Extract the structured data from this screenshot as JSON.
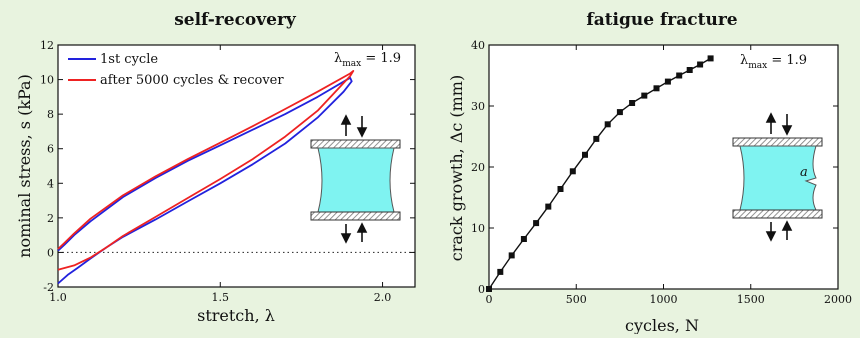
{
  "chart_data": [
    {
      "type": "line",
      "title": "self-recovery",
      "xlabel": "stretch, λ",
      "ylabel": "nominal stress, s (kPa)",
      "xlim": [
        1.0,
        2.1
      ],
      "ylim": [
        -2,
        12
      ],
      "xticks": [
        "1.0",
        "1.5",
        "2.0"
      ],
      "yticks": [
        "-2",
        "0",
        "2",
        "4",
        "6",
        "8",
        "10",
        "12"
      ],
      "zero_line": "dotted",
      "legend_position": "top-left",
      "annotation": {
        "symbol": "λ",
        "sub": "max",
        "rest": " = 1.9"
      },
      "series": [
        {
          "name": "1st cycle",
          "color": "#2222dd",
          "points": [
            [
              1.0,
              -1.8
            ],
            [
              1.03,
              -1.3
            ],
            [
              1.06,
              -0.9
            ],
            [
              1.1,
              -0.35
            ],
            [
              1.15,
              0.3
            ],
            [
              1.2,
              0.9
            ],
            [
              1.3,
              1.9
            ],
            [
              1.4,
              2.95
            ],
            [
              1.5,
              4.0
            ],
            [
              1.6,
              5.1
            ],
            [
              1.7,
              6.3
            ],
            [
              1.8,
              7.8
            ],
            [
              1.88,
              9.3
            ],
            [
              1.905,
              9.9
            ],
            [
              1.9,
              10.1
            ],
            [
              1.8,
              9.0
            ],
            [
              1.7,
              8.0
            ],
            [
              1.6,
              7.1
            ],
            [
              1.5,
              6.2
            ],
            [
              1.4,
              5.3
            ],
            [
              1.3,
              4.3
            ],
            [
              1.2,
              3.2
            ],
            [
              1.1,
              1.8
            ],
            [
              1.05,
              1.0
            ],
            [
              1.02,
              0.45
            ],
            [
              1.0,
              0.1
            ]
          ]
        },
        {
          "name": "after 5000 cycles & recover",
          "color": "#ee2222",
          "points": [
            [
              1.0,
              -1.0
            ],
            [
              1.05,
              -0.75
            ],
            [
              1.1,
              -0.3
            ],
            [
              1.15,
              0.3
            ],
            [
              1.2,
              0.95
            ],
            [
              1.3,
              2.05
            ],
            [
              1.4,
              3.15
            ],
            [
              1.5,
              4.25
            ],
            [
              1.6,
              5.4
            ],
            [
              1.7,
              6.7
            ],
            [
              1.8,
              8.2
            ],
            [
              1.88,
              9.8
            ],
            [
              1.9,
              10.2
            ],
            [
              1.91,
              10.5
            ],
            [
              1.9,
              10.35
            ],
            [
              1.8,
              9.3
            ],
            [
              1.7,
              8.3
            ],
            [
              1.6,
              7.3
            ],
            [
              1.5,
              6.35
            ],
            [
              1.4,
              5.4
            ],
            [
              1.3,
              4.4
            ],
            [
              1.2,
              3.3
            ],
            [
              1.1,
              1.95
            ],
            [
              1.05,
              1.1
            ],
            [
              1.02,
              0.55
            ],
            [
              1.0,
              0.2
            ]
          ]
        }
      ]
    },
    {
      "type": "line",
      "title": "fatigue fracture",
      "xlabel": "cycles, N",
      "ylabel": "crack growth, Δc (mm)",
      "xlim": [
        0,
        2000
      ],
      "ylim": [
        0,
        40
      ],
      "xticks": [
        "0",
        "500",
        "1000",
        "1500",
        "2000"
      ],
      "yticks": [
        "0",
        "10",
        "20",
        "30",
        "40"
      ],
      "annotation": {
        "symbol": "λ",
        "sub": "max",
        "rest": " = 1.9"
      },
      "crack_label": "a",
      "series": [
        {
          "name": "",
          "color": "#111111",
          "marker": "square",
          "points": [
            [
              0,
              0
            ],
            [
              65,
              2.8
            ],
            [
              130,
              5.5
            ],
            [
              200,
              8.2
            ],
            [
              270,
              10.8
            ],
            [
              340,
              13.5
            ],
            [
              410,
              16.4
            ],
            [
              480,
              19.3
            ],
            [
              550,
              22.0
            ],
            [
              615,
              24.6
            ],
            [
              680,
              27.0
            ],
            [
              750,
              29.0
            ],
            [
              820,
              30.5
            ],
            [
              890,
              31.7
            ],
            [
              960,
              32.9
            ],
            [
              1025,
              34.0
            ],
            [
              1090,
              35.0
            ],
            [
              1150,
              35.9
            ],
            [
              1210,
              36.8
            ],
            [
              1270,
              37.8
            ]
          ]
        }
      ]
    }
  ]
}
